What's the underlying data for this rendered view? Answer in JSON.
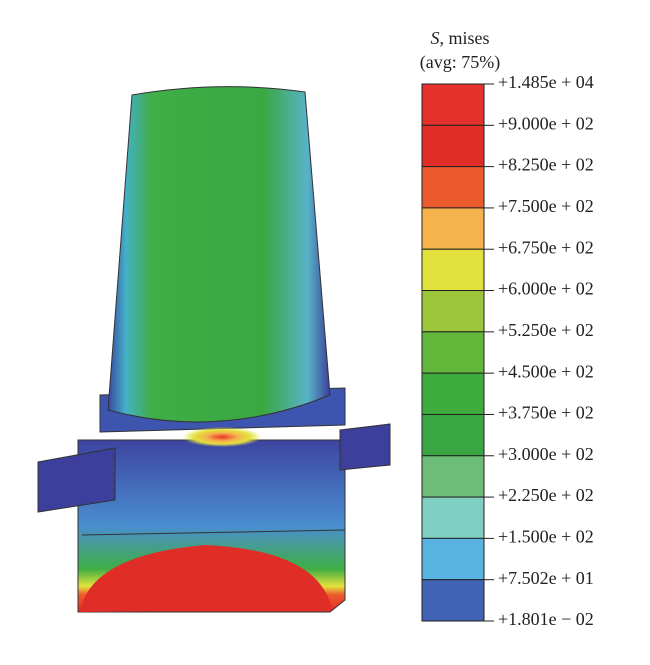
{
  "legend": {
    "title_symbol": "S",
    "title": ", mises",
    "subtitle": "(avg: 75%)",
    "labels": [
      "+1.485e + 04",
      "+9.000e + 02",
      "+8.250e + 02",
      "+7.500e + 02",
      "+6.750e + 02",
      "+6.000e + 02",
      "+5.250e + 02",
      "+4.500e + 02",
      "+3.750e + 02",
      "+3.000e + 02",
      "+2.250e + 02",
      "+1.500e + 02",
      "+7.502e + 01",
      "+1.801e − 02"
    ],
    "colors": [
      "#e5312b",
      "#e02d27",
      "#eb5a2c",
      "#f6b24c",
      "#e3e23d",
      "#9cc63b",
      "#62b63a",
      "#3eac3d",
      "#3aa543",
      "#6dbd78",
      "#7fcfc3",
      "#58b3e1",
      "#4063b4",
      "#3c3f9b"
    ]
  }
}
